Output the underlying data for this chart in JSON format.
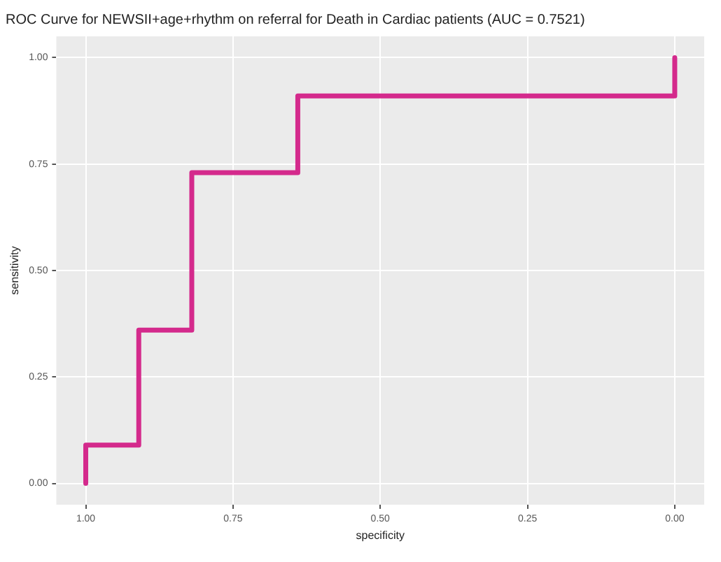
{
  "chart_data": {
    "type": "line",
    "title": "ROC Curve for NEWSII+age+rhythm on referral for Death in Cardiac patients (AUC = 0.7521)",
    "xlabel": "specificity",
    "ylabel": "sensitivity",
    "series": [
      {
        "color": "#d42a8c",
        "x": [
          1,
          1,
          0.91,
          0.91,
          0.82,
          0.82,
          0.64,
          0.64,
          0,
          0
        ],
        "values": [
          0,
          0.09,
          0.09,
          0.36,
          0.36,
          0.73,
          0.73,
          0.91,
          0.91,
          1
        ]
      }
    ],
    "xlim": [
      1.05,
      -0.05
    ],
    "ylim": [
      -0.05,
      1.05
    ],
    "xticks": [
      {
        "value": 1,
        "label": "1.00"
      },
      {
        "value": 0.75,
        "label": "0.75"
      },
      {
        "value": 0.5,
        "label": "0.50"
      },
      {
        "value": 0.25,
        "label": "0.25"
      },
      {
        "value": 0,
        "label": "0.00"
      }
    ],
    "yticks": [
      {
        "value": 0,
        "label": "0.00"
      },
      {
        "value": 0.25,
        "label": "0.25"
      },
      {
        "value": 0.5,
        "label": "0.50"
      },
      {
        "value": 0.75,
        "label": "0.75"
      },
      {
        "value": 1,
        "label": "1.00"
      }
    ],
    "grid": true,
    "legend": false,
    "marker": "none",
    "line_style": "solid"
  }
}
